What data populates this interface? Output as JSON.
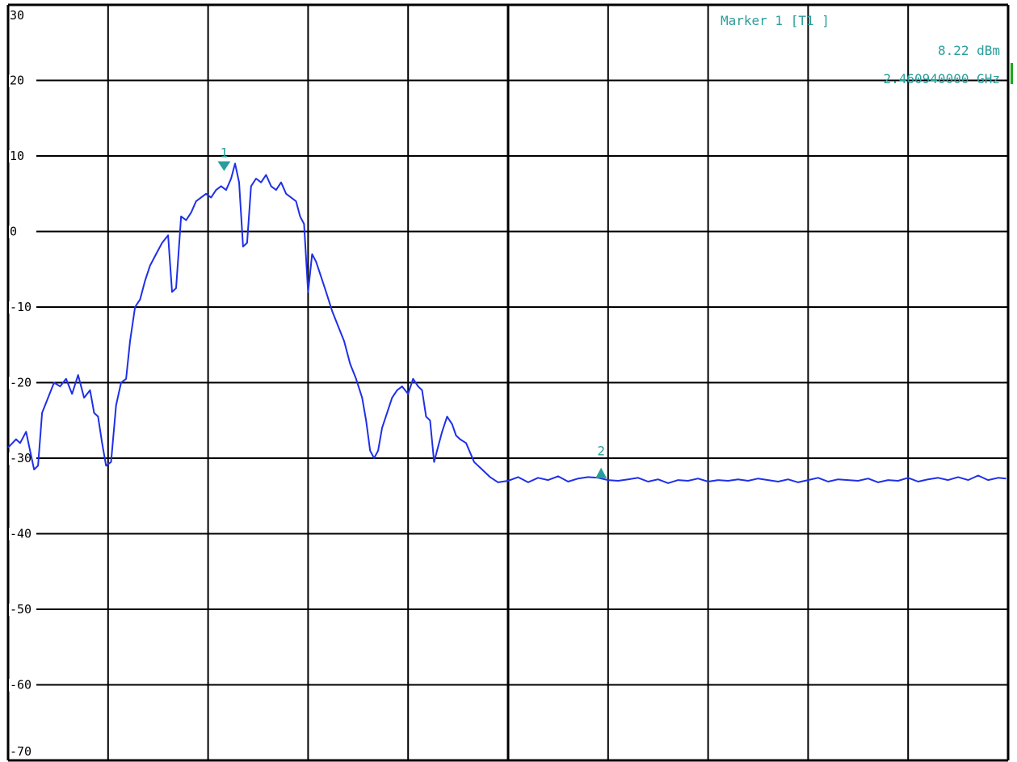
{
  "chart_data": {
    "type": "line",
    "title": "",
    "xlabel": "",
    "ylabel": "",
    "ylim": [
      -70,
      30
    ],
    "xlim": [
      0,
      10
    ],
    "grid": true,
    "y_tick_labels": [
      "30",
      "20",
      "10",
      "0",
      "-10",
      "-20",
      "-30",
      "-40",
      "-50",
      "-60",
      "-70"
    ],
    "y_tick_values": [
      30,
      20,
      10,
      0,
      -10,
      -20,
      -30,
      -40,
      -50,
      -60,
      -70
    ],
    "series": [
      {
        "color": "#1f2fe8",
        "points": [
          [
            0.0,
            -28.6
          ],
          [
            0.08,
            -27.5
          ],
          [
            0.12,
            -28.0
          ],
          [
            0.18,
            -26.5
          ],
          [
            0.22,
            -29.0
          ],
          [
            0.26,
            -31.5
          ],
          [
            0.3,
            -31.0
          ],
          [
            0.34,
            -24.0
          ],
          [
            0.4,
            -22.0
          ],
          [
            0.46,
            -20.0
          ],
          [
            0.52,
            -20.5
          ],
          [
            0.58,
            -19.5
          ],
          [
            0.64,
            -21.5
          ],
          [
            0.7,
            -19.0
          ],
          [
            0.76,
            -22.0
          ],
          [
            0.82,
            -21.0
          ],
          [
            0.86,
            -24.0
          ],
          [
            0.9,
            -24.5
          ],
          [
            0.94,
            -28.0
          ],
          [
            0.98,
            -31.0
          ],
          [
            1.03,
            -30.5
          ],
          [
            1.08,
            -23.0
          ],
          [
            1.13,
            -20.0
          ],
          [
            1.18,
            -19.5
          ],
          [
            1.22,
            -14.5
          ],
          [
            1.27,
            -10.0
          ],
          [
            1.32,
            -9.0
          ],
          [
            1.37,
            -6.5
          ],
          [
            1.42,
            -4.5
          ],
          [
            1.48,
            -3.0
          ],
          [
            1.54,
            -1.5
          ],
          [
            1.6,
            -0.5
          ],
          [
            1.64,
            -8.0
          ],
          [
            1.68,
            -7.5
          ],
          [
            1.73,
            2.0
          ],
          [
            1.78,
            1.5
          ],
          [
            1.83,
            2.5
          ],
          [
            1.88,
            4.0
          ],
          [
            1.93,
            4.5
          ],
          [
            1.98,
            5.0
          ],
          [
            2.03,
            4.5
          ],
          [
            2.08,
            5.5
          ],
          [
            2.13,
            6.0
          ],
          [
            2.18,
            5.5
          ],
          [
            2.23,
            7.0
          ],
          [
            2.27,
            9.0
          ],
          [
            2.31,
            6.5
          ],
          [
            2.35,
            -2.0
          ],
          [
            2.39,
            -1.5
          ],
          [
            2.43,
            6.0
          ],
          [
            2.48,
            7.0
          ],
          [
            2.53,
            6.5
          ],
          [
            2.58,
            7.5
          ],
          [
            2.63,
            6.0
          ],
          [
            2.68,
            5.5
          ],
          [
            2.73,
            6.5
          ],
          [
            2.78,
            5.0
          ],
          [
            2.83,
            4.5
          ],
          [
            2.88,
            4.0
          ],
          [
            2.92,
            2.0
          ],
          [
            2.96,
            1.0
          ],
          [
            3.0,
            -8.0
          ],
          [
            3.04,
            -3.0
          ],
          [
            3.08,
            -4.0
          ],
          [
            3.13,
            -6.0
          ],
          [
            3.18,
            -8.0
          ],
          [
            3.24,
            -10.5
          ],
          [
            3.3,
            -12.5
          ],
          [
            3.36,
            -14.5
          ],
          [
            3.42,
            -17.5
          ],
          [
            3.48,
            -19.5
          ],
          [
            3.54,
            -22.0
          ],
          [
            3.58,
            -25.0
          ],
          [
            3.62,
            -29.0
          ],
          [
            3.66,
            -30.0
          ],
          [
            3.7,
            -29.0
          ],
          [
            3.74,
            -26.0
          ],
          [
            3.79,
            -24.0
          ],
          [
            3.84,
            -22.0
          ],
          [
            3.89,
            -21.0
          ],
          [
            3.94,
            -20.5
          ],
          [
            4.0,
            -21.5
          ],
          [
            4.05,
            -19.5
          ],
          [
            4.1,
            -20.5
          ],
          [
            4.14,
            -21.0
          ],
          [
            4.18,
            -24.5
          ],
          [
            4.22,
            -25.0
          ],
          [
            4.26,
            -30.5
          ],
          [
            4.3,
            -28.5
          ],
          [
            4.34,
            -26.5
          ],
          [
            4.39,
            -24.5
          ],
          [
            4.44,
            -25.5
          ],
          [
            4.48,
            -27.0
          ],
          [
            4.52,
            -27.5
          ],
          [
            4.58,
            -28.0
          ],
          [
            4.66,
            -30.5
          ],
          [
            4.74,
            -31.5
          ],
          [
            4.82,
            -32.5
          ],
          [
            4.9,
            -33.2
          ],
          [
            5.0,
            -33.0
          ],
          [
            5.1,
            -32.5
          ],
          [
            5.2,
            -33.2
          ],
          [
            5.3,
            -32.6
          ],
          [
            5.4,
            -32.9
          ],
          [
            5.5,
            -32.4
          ],
          [
            5.6,
            -33.1
          ],
          [
            5.7,
            -32.7
          ],
          [
            5.8,
            -32.5
          ],
          [
            5.9,
            -32.6
          ],
          [
            6.0,
            -32.9
          ],
          [
            6.1,
            -33.0
          ],
          [
            6.2,
            -32.8
          ],
          [
            6.3,
            -32.6
          ],
          [
            6.4,
            -33.1
          ],
          [
            6.5,
            -32.8
          ],
          [
            6.6,
            -33.3
          ],
          [
            6.7,
            -32.9
          ],
          [
            6.8,
            -33.0
          ],
          [
            6.9,
            -32.7
          ],
          [
            7.0,
            -33.1
          ],
          [
            7.1,
            -32.9
          ],
          [
            7.2,
            -33.0
          ],
          [
            7.3,
            -32.8
          ],
          [
            7.4,
            -33.0
          ],
          [
            7.5,
            -32.7
          ],
          [
            7.6,
            -32.9
          ],
          [
            7.7,
            -33.1
          ],
          [
            7.8,
            -32.8
          ],
          [
            7.9,
            -33.2
          ],
          [
            8.0,
            -32.9
          ],
          [
            8.1,
            -32.6
          ],
          [
            8.2,
            -33.1
          ],
          [
            8.3,
            -32.8
          ],
          [
            8.4,
            -32.9
          ],
          [
            8.5,
            -33.0
          ],
          [
            8.6,
            -32.7
          ],
          [
            8.7,
            -33.2
          ],
          [
            8.8,
            -32.9
          ],
          [
            8.9,
            -33.0
          ],
          [
            9.0,
            -32.6
          ],
          [
            9.1,
            -33.1
          ],
          [
            9.2,
            -32.8
          ],
          [
            9.3,
            -32.6
          ],
          [
            9.4,
            -32.9
          ],
          [
            9.5,
            -32.5
          ],
          [
            9.6,
            -32.9
          ],
          [
            9.7,
            -32.3
          ],
          [
            9.8,
            -32.9
          ],
          [
            9.9,
            -32.6
          ],
          [
            9.98,
            -32.7
          ]
        ]
      }
    ],
    "markers": [
      {
        "label": "1",
        "x": 2.16,
        "y": 8.22,
        "shape": "down"
      },
      {
        "label": "2",
        "x": 5.93,
        "y": -32.0,
        "shape": "up"
      }
    ]
  },
  "marker_readout": {
    "title": "Marker 1 [T1 ]",
    "level": "8.22 dBm",
    "frequency": "2.460940000 GHz"
  },
  "colors": {
    "trace": "#1f2fe8",
    "marker": "#2a9d9a",
    "grid": "#000000",
    "text": "#000000",
    "edge_green": "#1aa81a"
  }
}
